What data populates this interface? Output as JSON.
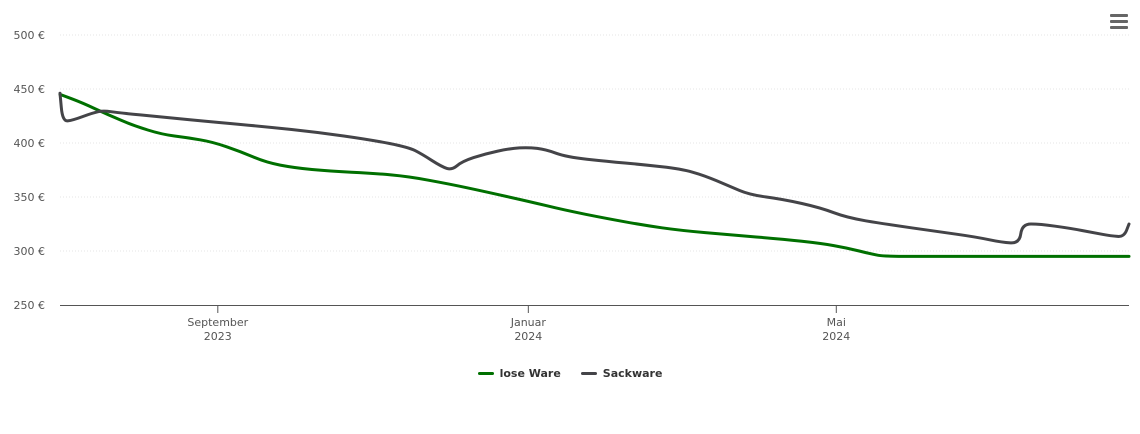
{
  "chart_data": {
    "type": "line",
    "title": "",
    "xlabel": "",
    "ylabel": "",
    "currency": "€",
    "ylim": [
      250,
      500
    ],
    "yticks": [
      250,
      300,
      350,
      400,
      450,
      500
    ],
    "ytick_labels": [
      "250 €",
      "300 €",
      "350 €",
      "400 €",
      "450 €",
      "500 €"
    ],
    "xlim": [
      "2023-07-01",
      "2024-08-24"
    ],
    "xticks": [
      {
        "date": "2023-09-01",
        "label_top": "September",
        "label_bottom": "2023"
      },
      {
        "date": "2024-01-01",
        "label_top": "Januar",
        "label_bottom": "2024"
      },
      {
        "date": "2024-05-01",
        "label_top": "Mai",
        "label_bottom": "2024"
      }
    ],
    "grid": true,
    "legend_position": "bottom-center",
    "series": [
      {
        "name": "lose Ware",
        "color": "#007000",
        "points": [
          [
            "2023-07-01",
            445
          ],
          [
            "2023-07-10",
            437
          ],
          [
            "2023-07-20",
            426
          ],
          [
            "2023-07-30",
            416
          ],
          [
            "2023-08-10",
            408
          ],
          [
            "2023-08-20",
            405
          ],
          [
            "2023-08-30",
            401
          ],
          [
            "2023-09-10",
            392
          ],
          [
            "2023-09-20",
            382
          ],
          [
            "2023-10-01",
            377
          ],
          [
            "2023-10-15",
            374
          ],
          [
            "2023-11-01",
            372
          ],
          [
            "2023-11-15",
            369
          ],
          [
            "2023-12-01",
            362
          ],
          [
            "2023-12-15",
            355
          ],
          [
            "2024-01-01",
            346
          ],
          [
            "2024-01-15",
            338
          ],
          [
            "2024-02-01",
            330
          ],
          [
            "2024-02-15",
            324
          ],
          [
            "2024-03-01",
            319
          ],
          [
            "2024-03-20",
            315
          ],
          [
            "2024-04-10",
            311
          ],
          [
            "2024-04-25",
            307
          ],
          [
            "2024-05-05",
            303
          ],
          [
            "2024-05-15",
            297
          ],
          [
            "2024-05-20",
            295
          ],
          [
            "2024-06-10",
            295
          ],
          [
            "2024-07-01",
            295
          ],
          [
            "2024-08-24",
            295
          ]
        ]
      },
      {
        "name": "Sackware",
        "color": "#444448",
        "points": [
          [
            "2023-07-01",
            446
          ],
          [
            "2023-07-02",
            420
          ],
          [
            "2023-07-06",
            421
          ],
          [
            "2023-07-14",
            428
          ],
          [
            "2023-07-18",
            430
          ],
          [
            "2023-07-24",
            428
          ],
          [
            "2023-08-10",
            424
          ],
          [
            "2023-09-01",
            419
          ],
          [
            "2023-09-20",
            415
          ],
          [
            "2023-10-10",
            410
          ],
          [
            "2023-10-31",
            403
          ],
          [
            "2023-11-15",
            396
          ],
          [
            "2023-11-20",
            390
          ],
          [
            "2023-11-28",
            378
          ],
          [
            "2023-12-02",
            375
          ],
          [
            "2023-12-06",
            383
          ],
          [
            "2023-12-15",
            390
          ],
          [
            "2023-12-25",
            395
          ],
          [
            "2024-01-01",
            396
          ],
          [
            "2024-01-08",
            394
          ],
          [
            "2024-01-16",
            387
          ],
          [
            "2024-02-01",
            383
          ],
          [
            "2024-02-15",
            380
          ],
          [
            "2024-03-01",
            376
          ],
          [
            "2024-03-10",
            370
          ],
          [
            "2024-03-20",
            360
          ],
          [
            "2024-03-28",
            352
          ],
          [
            "2024-04-10",
            348
          ],
          [
            "2024-04-25",
            340
          ],
          [
            "2024-05-05",
            331
          ],
          [
            "2024-05-20",
            325
          ],
          [
            "2024-06-10",
            318
          ],
          [
            "2024-06-25",
            313
          ],
          [
            "2024-07-05",
            308
          ],
          [
            "2024-07-12",
            307
          ],
          [
            "2024-07-13",
            325
          ],
          [
            "2024-07-20",
            325
          ],
          [
            "2024-08-01",
            321
          ],
          [
            "2024-08-10",
            317
          ],
          [
            "2024-08-17",
            314
          ],
          [
            "2024-08-22",
            313
          ],
          [
            "2024-08-24",
            325
          ]
        ]
      }
    ]
  },
  "legend": {
    "items": [
      {
        "label": "lose Ware",
        "color": "#007000"
      },
      {
        "label": "Sackware",
        "color": "#444448"
      }
    ]
  },
  "toolbar": {
    "menu_icon": "hamburger-menu-icon"
  }
}
